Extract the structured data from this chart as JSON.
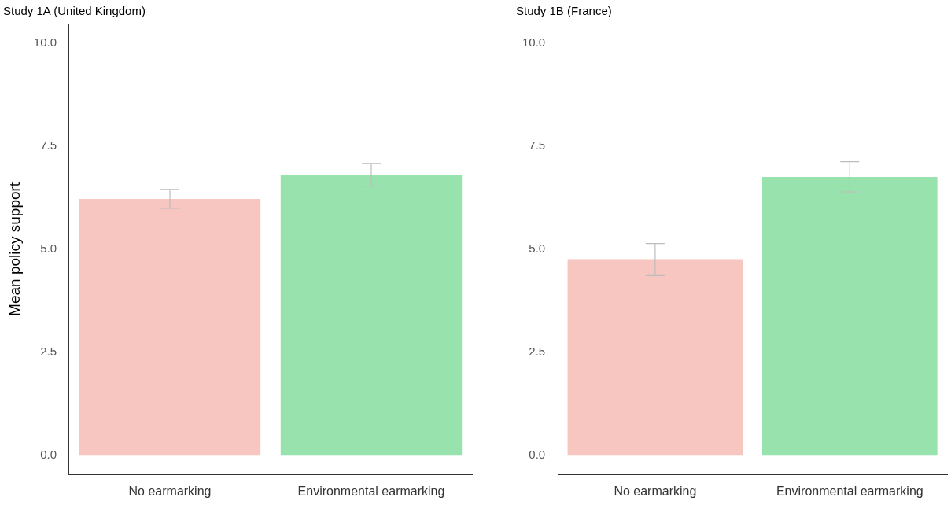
{
  "chart_data": [
    {
      "type": "bar",
      "title": "Study 1A (United Kingdom)",
      "ylabel": "Mean policy support",
      "categories": [
        "No earmarking",
        "Environmental earmarking"
      ],
      "values": [
        6.22,
        6.81
      ],
      "colors": [
        "#f8c6c0",
        "#98e2ae"
      ],
      "errors": [
        [
          5.99,
          6.45
        ],
        [
          6.53,
          7.08
        ]
      ],
      "ylim": [
        -0.47,
        10.47
      ],
      "yticks": [
        {
          "value": 0,
          "label": "0.0"
        },
        {
          "value": 2.5,
          "label": "2.5"
        },
        {
          "value": 5,
          "label": "5.0"
        },
        {
          "value": 7.5,
          "label": "7.5"
        },
        {
          "value": 10,
          "label": "10.0"
        }
      ],
      "grid": false,
      "legend": false
    },
    {
      "type": "bar",
      "title": "Study 1B (France)",
      "categories": [
        "No earmarking",
        "Environmental earmarking"
      ],
      "values": [
        4.76,
        6.75
      ],
      "colors": [
        "#f8c6c0",
        "#98e2ae"
      ],
      "errors": [
        [
          4.36,
          5.14
        ],
        [
          6.39,
          7.12
        ]
      ],
      "ylim": [
        -0.47,
        10.47
      ],
      "yticks": [
        {
          "value": 0,
          "label": "0.0"
        },
        {
          "value": 2.5,
          "label": "2.5"
        },
        {
          "value": 5,
          "label": "5.0"
        },
        {
          "value": 7.5,
          "label": "7.5"
        },
        {
          "value": 10,
          "label": "10.0"
        }
      ],
      "grid": false,
      "legend": false
    }
  ]
}
